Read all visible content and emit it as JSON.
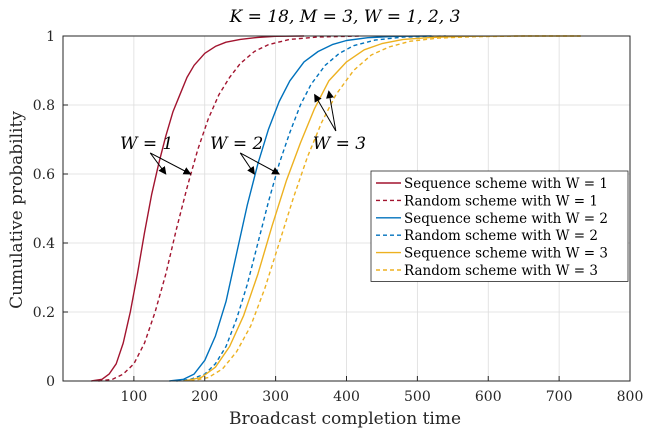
{
  "chart_data": {
    "type": "line",
    "title": "K = 18, M = 3, W = 1, 2, 3",
    "xlabel": "Broadcast completion time",
    "ylabel": "Cumulative probability",
    "xlim": [
      0,
      800
    ],
    "ylim": [
      0,
      1
    ],
    "xticks": [
      "100",
      "200",
      "300",
      "400",
      "500",
      "600",
      "700",
      "800"
    ],
    "yticks": [
      "0",
      "0.2",
      "0.4",
      "0.6",
      "0.8",
      "1"
    ],
    "grid": true,
    "legend_placement": "center-right",
    "series": [
      {
        "name": "Sequence scheme with W = 1",
        "color": "#A2142F",
        "dash": "solid",
        "x": [
          40,
          55,
          65,
          75,
          85,
          95,
          105,
          115,
          125,
          135,
          145,
          155,
          165,
          175,
          185,
          200,
          215,
          230,
          250,
          275,
          300,
          340
        ],
        "y": [
          0,
          0.005,
          0.02,
          0.05,
          0.11,
          0.2,
          0.31,
          0.43,
          0.54,
          0.63,
          0.71,
          0.78,
          0.83,
          0.88,
          0.915,
          0.95,
          0.97,
          0.982,
          0.99,
          0.996,
          0.999,
          1
        ]
      },
      {
        "name": "Random scheme with W = 1",
        "color": "#A2142F",
        "dash": "dashed",
        "x": [
          50,
          70,
          85,
          100,
          115,
          130,
          145,
          160,
          175,
          190,
          205,
          220,
          235,
          250,
          270,
          290,
          320,
          360,
          420
        ],
        "y": [
          0,
          0.005,
          0.02,
          0.05,
          0.11,
          0.2,
          0.31,
          0.44,
          0.56,
          0.67,
          0.76,
          0.83,
          0.88,
          0.92,
          0.955,
          0.975,
          0.99,
          0.997,
          1
        ]
      },
      {
        "name": "Sequence scheme with W = 2",
        "color": "#0072BD",
        "dash": "solid",
        "x": [
          150,
          170,
          185,
          200,
          215,
          230,
          245,
          260,
          275,
          290,
          305,
          320,
          340,
          360,
          380,
          400,
          430,
          470,
          520
        ],
        "y": [
          0,
          0.005,
          0.02,
          0.06,
          0.13,
          0.23,
          0.37,
          0.51,
          0.63,
          0.73,
          0.81,
          0.87,
          0.925,
          0.955,
          0.975,
          0.987,
          0.995,
          0.999,
          1
        ]
      },
      {
        "name": "Random scheme with W = 2",
        "color": "#0072BD",
        "dash": "dashed",
        "x": [
          160,
          180,
          200,
          215,
          230,
          245,
          260,
          275,
          290,
          305,
          320,
          335,
          350,
          370,
          390,
          410,
          440,
          480,
          540
        ],
        "y": [
          0,
          0.005,
          0.02,
          0.05,
          0.1,
          0.18,
          0.28,
          0.4,
          0.52,
          0.63,
          0.72,
          0.8,
          0.86,
          0.915,
          0.95,
          0.972,
          0.988,
          0.997,
          1
        ]
      },
      {
        "name": "Sequence scheme with W = 3",
        "color": "#EDB120",
        "dash": "solid",
        "x": [
          170,
          195,
          215,
          235,
          255,
          275,
          295,
          315,
          335,
          355,
          375,
          400,
          425,
          450,
          480,
          520,
          570,
          640,
          730
        ],
        "y": [
          0,
          0.01,
          0.04,
          0.1,
          0.19,
          0.31,
          0.45,
          0.58,
          0.69,
          0.79,
          0.87,
          0.925,
          0.96,
          0.978,
          0.99,
          0.996,
          0.999,
          1,
          1
        ]
      },
      {
        "name": "Random scheme with W = 3",
        "color": "#EDB120",
        "dash": "dashed",
        "x": [
          180,
          205,
          225,
          245,
          265,
          285,
          305,
          325,
          345,
          365,
          385,
          410,
          435,
          460,
          490,
          530,
          580,
          650,
          735
        ],
        "y": [
          0,
          0.01,
          0.035,
          0.085,
          0.16,
          0.27,
          0.4,
          0.53,
          0.65,
          0.75,
          0.83,
          0.9,
          0.945,
          0.968,
          0.985,
          0.994,
          0.998,
          1,
          1
        ]
      }
    ],
    "annotations": [
      {
        "text": "W = 1",
        "text_x": 118,
        "text_y": 0.69,
        "targets": [
          [
            145,
            0.6
          ],
          [
            180,
            0.6
          ]
        ]
      },
      {
        "text": "W = 2",
        "text_x": 245,
        "text_y": 0.69,
        "targets": [
          [
            270,
            0.6
          ],
          [
            305,
            0.6
          ]
        ]
      },
      {
        "text": "W = 3",
        "text_x": 390,
        "text_y": 0.69,
        "targets": [
          [
            355,
            0.83
          ],
          [
            375,
            0.84
          ]
        ]
      }
    ]
  }
}
